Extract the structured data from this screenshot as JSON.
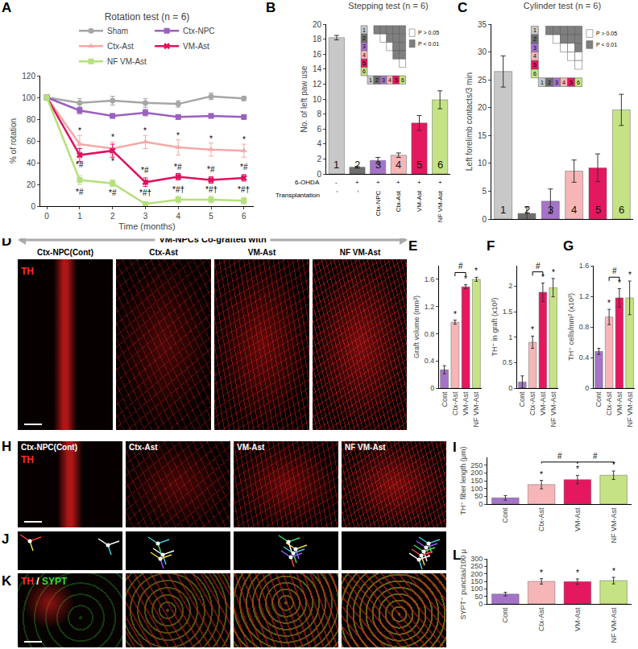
{
  "chart_data": [
    {
      "panel": "A",
      "type": "line",
      "title": "Rotation test (n = 6)",
      "x_label": "Time (months)",
      "y_label": "% of rotation",
      "x": [
        0,
        1,
        2,
        3,
        4,
        5,
        6
      ],
      "xlim": [
        -0.2,
        6.3
      ],
      "xticks": [
        0,
        1,
        2,
        3,
        4,
        5,
        6
      ],
      "ylim": [
        0,
        120
      ],
      "yticks": [
        0,
        20,
        40,
        60,
        80,
        100,
        120
      ],
      "legend": "top",
      "series": [
        {
          "name": "Sham",
          "color": "#a6a6a6",
          "marker": "circle",
          "values": [
            100,
            95,
            97,
            95,
            94,
            101,
            99
          ],
          "errors": [
            0,
            4,
            4,
            4,
            3,
            3,
            2
          ]
        },
        {
          "name": "Ctx-NPC",
          "color": "#9b5fc0",
          "marker": "square",
          "values": [
            100,
            88,
            83,
            86,
            82,
            83,
            82
          ],
          "errors": [
            0,
            3,
            2,
            3,
            2,
            2,
            2
          ]
        },
        {
          "name": "Ctx-Ast",
          "color": "#f4a9a8",
          "marker": "triangle-up",
          "values": [
            100,
            57,
            53,
            59,
            54,
            52,
            51
          ],
          "errors": [
            0,
            8,
            6,
            6,
            7,
            6,
            6
          ]
        },
        {
          "name": "VM-Ast",
          "color": "#e0115f",
          "marker": "x",
          "values": [
            100,
            47,
            51,
            22,
            27,
            24,
            26
          ],
          "errors": [
            0,
            6,
            6,
            4,
            3,
            3,
            3
          ]
        },
        {
          "name": "NF VM-Ast",
          "color": "#b5e07a",
          "marker": "square",
          "values": [
            100,
            24,
            21,
            2,
            6,
            6,
            5
          ],
          "errors": [
            0,
            4,
            3,
            2,
            3,
            3,
            3
          ]
        }
      ],
      "annotations": [
        {
          "x": 1,
          "y": 69,
          "text": "*"
        },
        {
          "x": 1,
          "y": 38,
          "text": "*#"
        },
        {
          "x": 1,
          "y": 13,
          "text": "*#"
        },
        {
          "x": 2,
          "y": 63,
          "text": "*"
        },
        {
          "x": 2,
          "y": 41,
          "text": "*"
        },
        {
          "x": 2,
          "y": 12,
          "text": "*#"
        },
        {
          "x": 3,
          "y": 69,
          "text": "*"
        },
        {
          "x": 3,
          "y": 33,
          "text": "*#"
        },
        {
          "x": 3,
          "y": 12,
          "text": "*#†"
        },
        {
          "x": 4,
          "y": 65,
          "text": "*"
        },
        {
          "x": 4,
          "y": 36,
          "text": "*#"
        },
        {
          "x": 4,
          "y": 15,
          "text": "*#†"
        },
        {
          "x": 5,
          "y": 62,
          "text": "*"
        },
        {
          "x": 5,
          "y": 34,
          "text": "*#"
        },
        {
          "x": 5,
          "y": 15,
          "text": "*#†"
        },
        {
          "x": 6,
          "y": 61,
          "text": "*"
        },
        {
          "x": 6,
          "y": 36,
          "text": "*#"
        },
        {
          "x": 6,
          "y": 15,
          "text": "*#†"
        }
      ]
    },
    {
      "panel": "B",
      "type": "bar",
      "title": "Stepping test (n = 6)",
      "y_label": "No. of left paw use",
      "categories": [
        "1",
        "2",
        "3",
        "4",
        "5",
        "6"
      ],
      "values": [
        18.2,
        0.9,
        1.8,
        2.5,
        6.8,
        9.9
      ],
      "errors": [
        0.3,
        0.1,
        0.4,
        0.3,
        1.0,
        1.2
      ],
      "colors": [
        "#c8c8c8",
        "#6e6e6e",
        "#a574c8",
        "#f6b6b8",
        "#e5175f",
        "#c5e384"
      ],
      "ylim": [
        0,
        20
      ],
      "yticks": [
        0,
        2,
        4,
        6,
        8,
        10,
        12,
        14,
        16,
        18,
        20
      ],
      "tick_labels": "y",
      "treatment_table": [
        {
          "label": "6-OHDA",
          "cells": [
            "-",
            "+",
            "+",
            "+",
            "+",
            "+"
          ]
        },
        {
          "label": "Transplantation",
          "cells": [
            "-",
            "-",
            "Ctx-NPC",
            "Ctx-Ast",
            "VM-Ast",
            "NF VM-Ast"
          ]
        }
      ],
      "comparison_matrix": {
        "labels": [
          "1",
          "2",
          "3",
          "4",
          "5",
          "6"
        ],
        "nonsignificant_pairs": [
          [
            2,
            3
          ],
          [
            3,
            4
          ],
          [
            5,
            6
          ]
        ],
        "legend": [
          {
            "text": "P > 0.05",
            "color": "#ffffff"
          },
          {
            "text": "P < 0.01",
            "color": "#7f7f7f"
          }
        ]
      }
    },
    {
      "panel": "C",
      "type": "bar",
      "title": "Cylinder test (n = 6)",
      "y_label": "Left forelimb contacts/3 min",
      "categories": [
        "1",
        "2",
        "3",
        "4",
        "5",
        "6"
      ],
      "values": [
        26.5,
        1.0,
        3.2,
        8.6,
        9.2,
        19.6
      ],
      "errors": [
        2.8,
        1.2,
        2.2,
        2.0,
        2.5,
        2.8
      ],
      "colors": [
        "#c8c8c8",
        "#6e6e6e",
        "#a574c8",
        "#f6b6b8",
        "#e5175f",
        "#c5e384"
      ],
      "ylim": [
        0,
        35
      ],
      "yticks": [
        0,
        5,
        10,
        15,
        20,
        25,
        30,
        35
      ],
      "tick_labels": "y",
      "comparison_matrix": {
        "labels": [
          "1",
          "2",
          "3",
          "4",
          "5",
          "6"
        ],
        "nonsignificant_pairs": [
          [
            2,
            3
          ],
          [
            3,
            4
          ],
          [
            3,
            5
          ],
          [
            4,
            5
          ],
          [
            4,
            6
          ],
          [
            5,
            6
          ]
        ],
        "legend": [
          {
            "text": "P > 0.05",
            "color": "#ffffff"
          },
          {
            "text": "P < 0.01",
            "color": "#7f7f7f"
          }
        ]
      }
    },
    {
      "panel": "E",
      "type": "bar",
      "y_label": "Graft volume (mm³)",
      "categories": [
        "Cont",
        "Ctx-Ast",
        "VM-Ast",
        "NF VM-Ast"
      ],
      "values": [
        0.27,
        0.97,
        1.49,
        1.6
      ],
      "errors": [
        0.06,
        0.03,
        0.03,
        0.03
      ],
      "colors": [
        "#a574c8",
        "#f6b6b8",
        "#e5175f",
        "#c5e384"
      ],
      "ylim": [
        0,
        1.8
      ],
      "yticks": [
        0,
        0.4,
        0.8,
        1.2,
        1.6
      ],
      "annotations": [
        {
          "x": 1,
          "y": 1.0,
          "text": "*"
        },
        {
          "x": 2,
          "y": 1.52,
          "text": "*"
        },
        {
          "x": 3,
          "y": 1.63,
          "text": "*"
        }
      ],
      "brackets": [
        {
          "from": 1,
          "to": 2,
          "y": 1.7,
          "text": "#"
        }
      ]
    },
    {
      "panel": "F",
      "type": "bar",
      "y_label": "TH⁺ in graft (x10³)",
      "categories": [
        "Cont",
        "Ctx-Ast",
        "VM-Ast",
        "NF VM-Ast"
      ],
      "values": [
        0.12,
        0.9,
        1.88,
        1.97
      ],
      "errors": [
        0.12,
        0.12,
        0.18,
        0.18
      ],
      "colors": [
        "#a574c8",
        "#f6b6b8",
        "#e5175f",
        "#c5e384"
      ],
      "ylim": [
        0,
        2.4
      ],
      "yticks": [
        0,
        0.5,
        1,
        1.5,
        2
      ],
      "annotations": [
        {
          "x": 1,
          "y": 1.02,
          "text": "*"
        },
        {
          "x": 2,
          "y": 2.06,
          "text": "*"
        },
        {
          "x": 3,
          "y": 2.15,
          "text": "*"
        }
      ],
      "brackets": [
        {
          "from": 1,
          "to": 2,
          "y": 2.28,
          "text": "#"
        }
      ]
    },
    {
      "panel": "G",
      "type": "bar",
      "y_label": "TH⁺ cells/mm³ (x10³)",
      "categories": [
        "Cont",
        "Ctx-Ast",
        "VM-Ast",
        "NF VM-Ast"
      ],
      "values": [
        0.48,
        0.93,
        1.18,
        1.18
      ],
      "errors": [
        0.04,
        0.1,
        0.12,
        0.22
      ],
      "colors": [
        "#a574c8",
        "#f6b6b8",
        "#e5175f",
        "#c5e384"
      ],
      "ylim": [
        0,
        1.6
      ],
      "yticks": [
        0,
        0.4,
        0.8,
        1.2,
        1.6
      ],
      "annotations": [
        {
          "x": 1,
          "y": 1.03,
          "text": "*"
        },
        {
          "x": 2,
          "y": 1.3,
          "text": "*"
        },
        {
          "x": 3,
          "y": 1.4,
          "text": "*"
        }
      ],
      "brackets": [
        {
          "from": 1,
          "to": 2,
          "y": 1.45,
          "text": "#"
        }
      ]
    },
    {
      "panel": "I",
      "type": "bar",
      "y_label": "TH⁺ fiber length (μm)",
      "categories": [
        "Cont",
        "Ctx-Ast",
        "VM-Ast",
        "NF VM-Ast"
      ],
      "values": [
        40,
        125,
        157,
        185
      ],
      "errors": [
        15,
        27,
        27,
        27
      ],
      "colors": [
        "#a574c8",
        "#f6b6b8",
        "#e5175f",
        "#c5e384"
      ],
      "ylim": [
        0,
        300
      ],
      "yticks": [
        0,
        50,
        100,
        150,
        200,
        250
      ],
      "annotations": [
        {
          "x": 1,
          "y": 152,
          "text": "*"
        },
        {
          "x": 2,
          "y": 184,
          "text": "*"
        },
        {
          "x": 3,
          "y": 212,
          "text": "*"
        }
      ],
      "brackets": [
        {
          "from": 1,
          "to": 2,
          "y": 270,
          "text": "#"
        },
        {
          "from": 2,
          "to": 3,
          "y": 270,
          "text": "#"
        }
      ]
    },
    {
      "panel": "L",
      "type": "bar",
      "y_label": "SYPT⁺ punctas/100 μm",
      "categories": [
        "Cont",
        "Ctx-Ast",
        "VM-Ast",
        "NF VM-Ast"
      ],
      "values": [
        65,
        150,
        148,
        155
      ],
      "errors": [
        12,
        18,
        18,
        22
      ],
      "colors": [
        "#a574c8",
        "#f6b6b8",
        "#e5175f",
        "#c5e384"
      ],
      "ylim": [
        0,
        300
      ],
      "yticks": [
        0,
        50,
        100,
        150,
        200,
        250,
        300
      ],
      "annotations": [
        {
          "x": 1,
          "y": 168,
          "text": "*"
        },
        {
          "x": 2,
          "y": 166,
          "text": "*"
        },
        {
          "x": 3,
          "y": 177,
          "text": "*"
        }
      ]
    }
  ],
  "images": [
    {
      "panel": "D",
      "header": "VM-NPCs Co-grafted with",
      "labels": [
        "Ctx-NPC(Cont)",
        "Ctx-Ast",
        "VM-Ast",
        "NF VM-Ast"
      ],
      "stain": [
        {
          "text": "TH",
          "color": "#ff2a2a"
        }
      ]
    },
    {
      "panel": "H",
      "labels": [
        "Ctx-NPC(Cont)",
        "Ctx-Ast",
        "VM-Ast",
        "NF VM-Ast"
      ],
      "stain": [
        {
          "text": "TH",
          "color": "#ff2a2a"
        }
      ]
    },
    {
      "panel": "J"
    },
    {
      "panel": "K",
      "stain": [
        {
          "text": "TH",
          "color": "#ff2a2a"
        },
        {
          "text": "SYPT",
          "color": "#33dd33"
        }
      ],
      "stain_separator": " / "
    }
  ]
}
